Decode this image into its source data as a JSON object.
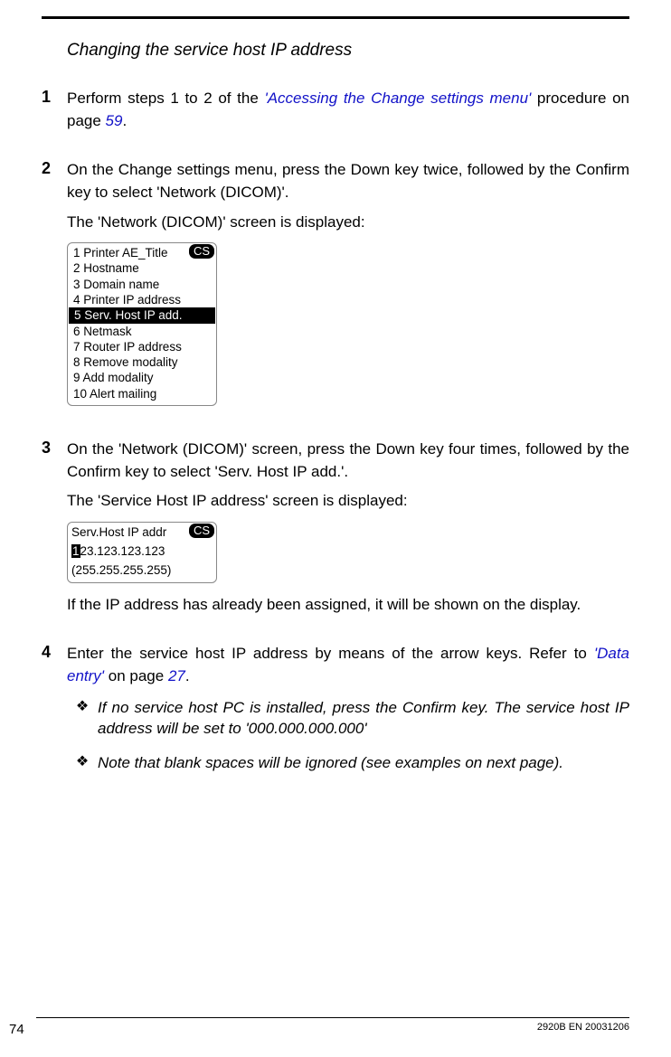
{
  "title": "Changing the service host IP address",
  "steps": {
    "s1": {
      "num": "1",
      "pre": "Perform steps 1 to 2 of the ",
      "link": "'Accessing the Change settings menu'",
      "mid": " procedure on page ",
      "page": "59",
      "post": "."
    },
    "s2": {
      "num": "2",
      "p1": "On the Change settings menu, press the Down key twice, followed by the Confirm key to select 'Network (DICOM)'.",
      "p2": "The 'Network (DICOM)' screen is displayed:"
    },
    "menu": {
      "badge": "CS",
      "items": [
        "1 Printer AE_Title",
        "2 Hostname",
        "3 Domain name",
        "4 Printer IP address",
        "5 Serv. Host IP add.",
        "6 Netmask",
        "7 Router IP address",
        "8 Remove modality",
        "9 Add modality",
        "10 Alert mailing"
      ],
      "selected_index": 4
    },
    "s3": {
      "num": "3",
      "p1": "On the 'Network (DICOM)' screen, press the Down key four times, followed by the Confirm key to select 'Serv. Host IP add.'.",
      "p2": "The 'Service Host IP address' screen is displayed:"
    },
    "ipscreen": {
      "badge": "CS",
      "title": "Serv.Host IP addr",
      "cursor_char": "1",
      "rest": "23.123.123.123",
      "mask": "(255.255.255.255)"
    },
    "s3_after": "If the IP address has already been assigned, it will be shown on the display.",
    "s4": {
      "num": "4",
      "pre": "Enter the service host IP address by means of the arrow keys. Refer to ",
      "link": "'Data entry'",
      "mid": " on page ",
      "page": "27",
      "post": "."
    },
    "bullets": {
      "b1": "If no service host PC is installed, press the Confirm key. The service host IP address will be set to '000.000.000.000'",
      "b2": "Note that blank spaces will be ignored (see examples on next page)."
    },
    "footer": {
      "page": "74",
      "code": "2920B EN 20031206"
    }
  }
}
